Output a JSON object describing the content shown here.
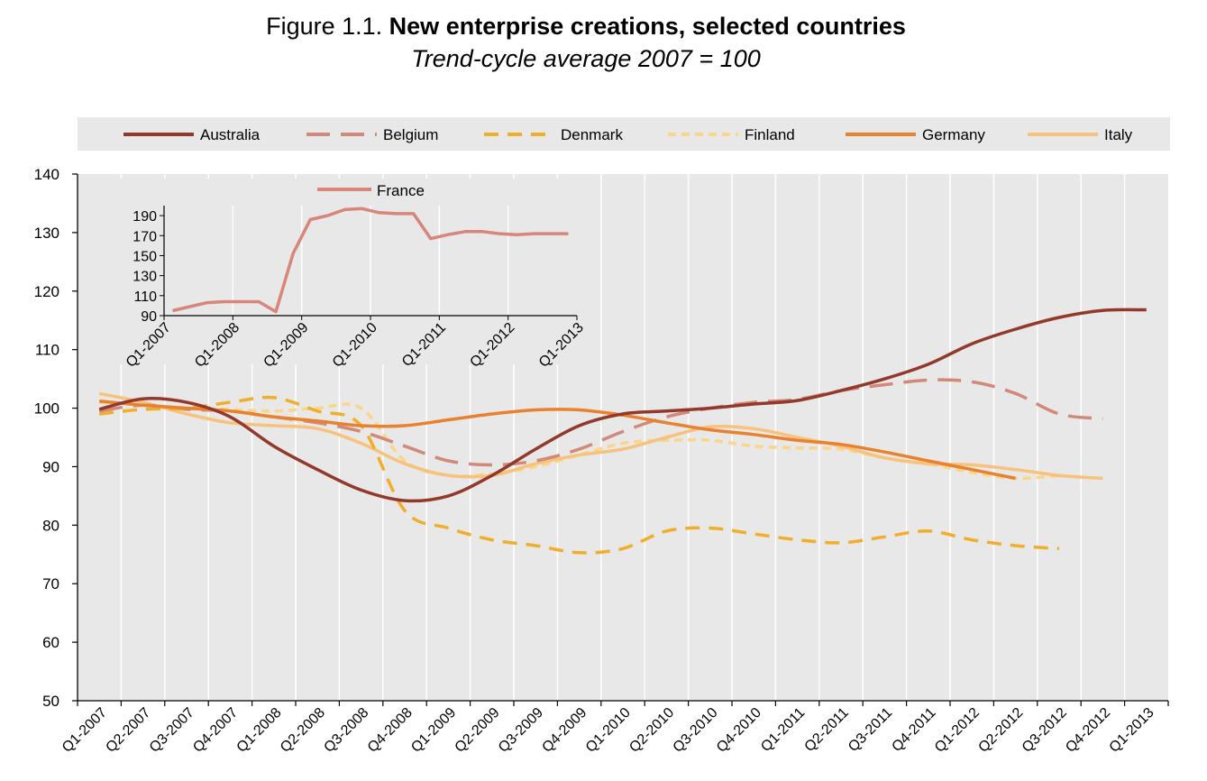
{
  "header": {
    "title_prefix": "Figure 1.1.",
    "title_main": "New enterprise creations, selected countries",
    "subtitle": "Trend-cycle average 2007 = 100"
  },
  "chart_data": [
    {
      "type": "line",
      "title": "New enterprise creations, selected countries",
      "subtitle": "Trend-cycle average 2007 = 100",
      "xlabel": "",
      "ylabel": "",
      "ylim": [
        50,
        140
      ],
      "yticks": [
        50,
        60,
        70,
        80,
        90,
        100,
        110,
        120,
        130,
        140
      ],
      "x_labels": [
        "Q1-2007",
        "Q2-2007",
        "Q3-2007",
        "Q4-2007",
        "Q1-2008",
        "Q2-2008",
        "Q3-2008",
        "Q4-2008",
        "Q1-2009",
        "Q2-2009",
        "Q3-2009",
        "Q4-2009",
        "Q1-2010",
        "Q2-2010",
        "Q3-2010",
        "Q4-2010",
        "Q1-2011",
        "Q2-2011",
        "Q3-2011",
        "Q4-2011",
        "Q1-2012",
        "Q2-2012",
        "Q3-2012",
        "Q4-2012",
        "Q1-2013"
      ],
      "grid": "vertical",
      "legend_position": "top",
      "series": [
        {
          "name": "Australia",
          "color": "#93392B",
          "dash": "solid",
          "x": [
            0,
            1,
            2,
            3,
            4,
            5,
            6,
            7,
            8,
            9,
            10,
            11,
            12,
            13,
            14,
            15,
            16,
            17,
            18,
            19,
            20,
            21,
            22,
            23,
            24
          ],
          "values": [
            99.8,
            101.6,
            101.0,
            98.5,
            93.5,
            89.5,
            86.0,
            84.2,
            85.0,
            88.5,
            93.0,
            97.0,
            99.0,
            99.5,
            100.0,
            100.7,
            101.3,
            103.0,
            105.0,
            107.5,
            111.0,
            113.5,
            115.5,
            116.7,
            116.8
          ]
        },
        {
          "name": "Belgium",
          "color": "#D18A7A",
          "dash": "long",
          "x": [
            0,
            1,
            2,
            3,
            4,
            5,
            6,
            7,
            8,
            9,
            10,
            11,
            12,
            13,
            14,
            15,
            16,
            17,
            18,
            19,
            20,
            21,
            22,
            23
          ],
          "values": [
            99.5,
            100.5,
            99.8,
            99.5,
            98.5,
            97.5,
            96.0,
            93.5,
            91.0,
            90.3,
            91.0,
            93.0,
            96.0,
            98.5,
            100.0,
            101.0,
            101.5,
            103.0,
            104.0,
            104.8,
            104.5,
            102.5,
            99.0,
            98.2
          ]
        },
        {
          "name": "Denmark",
          "color": "#F1AE2B",
          "dash": "dash",
          "x": [
            0,
            1,
            2,
            3,
            4,
            5,
            6,
            7,
            8,
            9,
            10,
            11,
            12,
            13,
            14,
            15,
            16,
            17,
            18,
            19,
            20,
            21,
            22
          ],
          "values": [
            99.0,
            99.8,
            100.0,
            101.0,
            101.8,
            99.5,
            97.0,
            82.5,
            79.5,
            77.5,
            76.5,
            75.3,
            76.0,
            79.0,
            79.5,
            78.5,
            77.5,
            77.0,
            78.0,
            79.0,
            77.5,
            76.5,
            76.0
          ]
        },
        {
          "name": "Finland",
          "color": "#FAD58A",
          "dash": "short",
          "x": [
            0,
            1,
            2,
            3,
            4,
            5,
            6,
            7,
            8,
            9,
            10,
            11,
            12,
            13,
            14,
            15,
            16,
            17,
            18,
            19,
            20,
            21,
            22
          ],
          "values": [
            101.0,
            100.5,
            100.0,
            99.8,
            99.5,
            100.0,
            100.0,
            91.0,
            88.5,
            88.8,
            90.0,
            92.0,
            94.0,
            94.5,
            94.5,
            93.5,
            93.2,
            93.0,
            91.5,
            90.5,
            89.0,
            88.0,
            88.5
          ]
        },
        {
          "name": "Germany",
          "color": "#E8822E",
          "dash": "solid",
          "x": [
            0,
            1,
            2,
            3,
            4,
            5,
            6,
            7,
            8,
            9,
            10,
            11,
            12,
            13,
            14,
            15,
            16,
            17,
            18,
            19,
            20,
            21
          ],
          "values": [
            101.2,
            100.5,
            100.0,
            99.5,
            98.5,
            97.8,
            97.0,
            97.0,
            98.0,
            99.0,
            99.7,
            99.7,
            98.8,
            97.5,
            96.3,
            95.5,
            94.5,
            93.8,
            92.5,
            91.0,
            89.5,
            88.0
          ]
        },
        {
          "name": "Italy",
          "color": "#F7C27C",
          "dash": "solid",
          "x": [
            0,
            1,
            2,
            3,
            4,
            5,
            6,
            7,
            8,
            9,
            10,
            11,
            12,
            13,
            14,
            15,
            16,
            17,
            18,
            19,
            20,
            21,
            22,
            23
          ],
          "values": [
            102.5,
            101.0,
            99.0,
            97.5,
            97.0,
            96.5,
            94.0,
            90.5,
            88.5,
            88.5,
            90.5,
            92.0,
            93.0,
            95.0,
            96.8,
            96.5,
            95.0,
            93.5,
            91.5,
            90.5,
            90.3,
            89.5,
            88.5,
            88.0
          ]
        }
      ]
    },
    {
      "type": "line",
      "title": "",
      "ylim": [
        90,
        200
      ],
      "yticks": [
        90,
        110,
        130,
        150,
        170,
        190
      ],
      "x_labels": [
        "Q1-2007",
        "Q1-2008",
        "Q1-2009",
        "Q1-2010",
        "Q1-2011",
        "Q1-2012",
        "Q1-2013"
      ],
      "grid": "vertical",
      "legend_position": "top-left",
      "series": [
        {
          "name": "France",
          "color": "#D8857A",
          "dash": "solid",
          "x": [
            0,
            1,
            2,
            3,
            4,
            5,
            6,
            7,
            8,
            9,
            10,
            11,
            12,
            13,
            14,
            15,
            16,
            17,
            18,
            19,
            20,
            21,
            22,
            23
          ],
          "values": [
            95,
            99,
            103,
            104,
            104,
            104,
            94,
            152,
            186,
            190,
            196,
            197,
            193,
            192,
            192,
            167,
            171,
            174,
            174,
            172,
            171,
            172,
            172,
            172
          ]
        }
      ]
    }
  ]
}
